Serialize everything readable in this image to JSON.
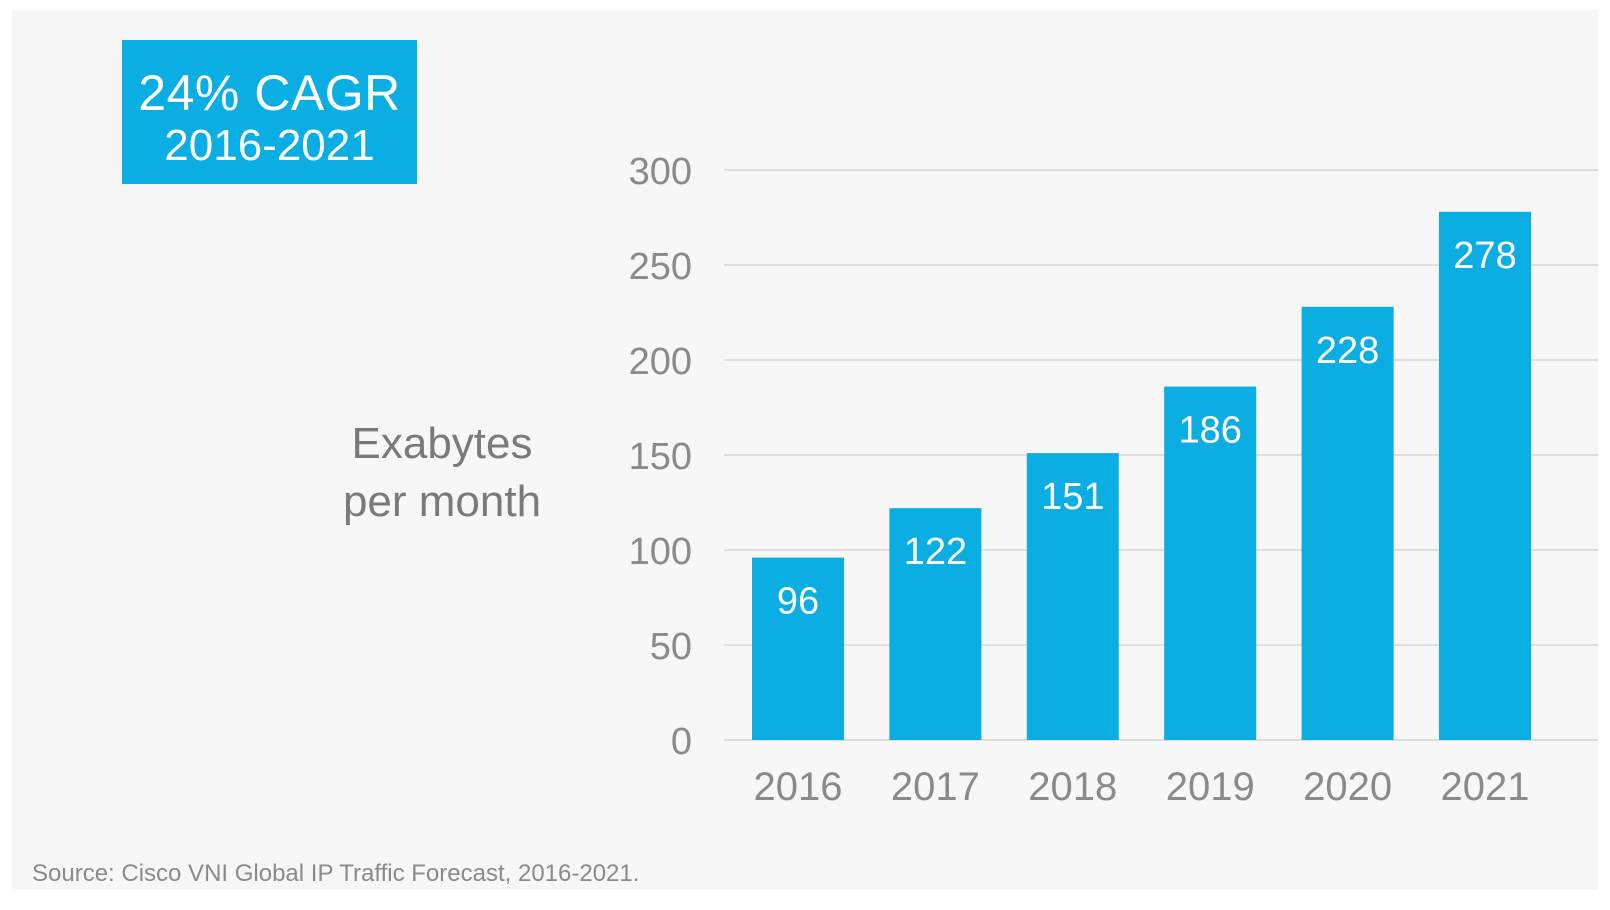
{
  "annotation": {
    "title": "24% CAGR",
    "subtitle": "2016-2021"
  },
  "source": "Source: Cisco VNI Global IP Traffic Forecast, 2016-2021.",
  "colors": {
    "bar": "#0aaee2",
    "grid": "#dddddd",
    "tick": "#8a8a8a",
    "bar_label": "#ffffff"
  },
  "chart_data": {
    "type": "bar",
    "title": "",
    "xlabel": "",
    "ylabel_lines": [
      "Exabytes",
      "per month"
    ],
    "categories": [
      "2016",
      "2017",
      "2018",
      "2019",
      "2020",
      "2021"
    ],
    "values": [
      96,
      122,
      151,
      186,
      228,
      278
    ],
    "value_labels": [
      "96",
      "122",
      "151",
      "186",
      "228",
      "278"
    ],
    "yticks": [
      "0",
      "50",
      "100",
      "150",
      "200",
      "250",
      "300"
    ],
    "ylim": [
      0,
      300
    ],
    "grid": true,
    "legend": "none"
  }
}
